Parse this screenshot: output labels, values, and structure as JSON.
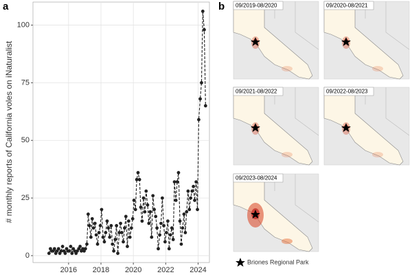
{
  "chart_data": [
    {
      "type": "line",
      "panel_label": "a",
      "ylabel": "# monthly reports of California voles on iNaturalist",
      "xlim": [
        2013.8,
        2024.7
      ],
      "xticks": [
        2016,
        2018,
        2020,
        2022,
        2024
      ],
      "ylim": [
        -3,
        110
      ],
      "yticks": [
        0,
        25,
        50,
        75,
        100
      ],
      "grid": true,
      "color": "#222222",
      "x": [
        2014.79,
        2014.88,
        2014.96,
        2015.04,
        2015.13,
        2015.21,
        2015.29,
        2015.38,
        2015.46,
        2015.54,
        2015.63,
        2015.71,
        2015.79,
        2015.88,
        2015.96,
        2016.04,
        2016.13,
        2016.21,
        2016.29,
        2016.38,
        2016.46,
        2016.54,
        2016.63,
        2016.71,
        2016.79,
        2016.88,
        2016.96,
        2017.04,
        2017.13,
        2017.21,
        2017.29,
        2017.38,
        2017.46,
        2017.54,
        2017.63,
        2017.71,
        2017.79,
        2017.88,
        2017.96,
        2018.04,
        2018.13,
        2018.21,
        2018.29,
        2018.38,
        2018.46,
        2018.54,
        2018.63,
        2018.71,
        2018.79,
        2018.88,
        2018.96,
        2019.04,
        2019.13,
        2019.21,
        2019.29,
        2019.38,
        2019.46,
        2019.54,
        2019.63,
        2019.71,
        2019.79,
        2019.88,
        2019.96,
        2020.04,
        2020.13,
        2020.21,
        2020.29,
        2020.38,
        2020.46,
        2020.54,
        2020.63,
        2020.71,
        2020.79,
        2020.88,
        2020.96,
        2021.04,
        2021.13,
        2021.21,
        2021.29,
        2021.38,
        2021.46,
        2021.54,
        2021.63,
        2021.71,
        2021.79,
        2021.88,
        2021.96,
        2022.04,
        2022.13,
        2022.21,
        2022.29,
        2022.38,
        2022.46,
        2022.54,
        2022.63,
        2022.71,
        2022.79,
        2022.88,
        2022.96,
        2023.04,
        2023.13,
        2023.21,
        2023.29,
        2023.38,
        2023.46,
        2023.54,
        2023.63,
        2023.71,
        2023.79,
        2023.88,
        2023.96,
        2024.04,
        2024.13,
        2024.21,
        2024.29,
        2024.38,
        2024.46
      ],
      "values": [
        1,
        3,
        2,
        2,
        3,
        1,
        2,
        3,
        1,
        2,
        4,
        2,
        1,
        3,
        2,
        2,
        4,
        1,
        3,
        2,
        1,
        2,
        3,
        4,
        2,
        3,
        2,
        3,
        5,
        18,
        13,
        8,
        16,
        12,
        14,
        9,
        5,
        10,
        13,
        20,
        8,
        6,
        10,
        15,
        12,
        8,
        13,
        5,
        2,
        7,
        13,
        1,
        10,
        14,
        10,
        6,
        12,
        17,
        4,
        15,
        8,
        12,
        16,
        24,
        20,
        33,
        36,
        33,
        21,
        15,
        25,
        19,
        28,
        22,
        14,
        19,
        8,
        26,
        20,
        17,
        12,
        3,
        9,
        14,
        25,
        13,
        6,
        10,
        15,
        3,
        9,
        12,
        7,
        32,
        24,
        32,
        36,
        15,
        5,
        12,
        18,
        10,
        19,
        28,
        20,
        25,
        28,
        30,
        24,
        32,
        20,
        59,
        68,
        75,
        106,
        98,
        65
      ]
    },
    {
      "type": "map",
      "panel_label": "b",
      "panels": [
        "09/2019-08/2020",
        "09/2020-08/2021",
        "09/2021-08/2022",
        "09/2022-08/2023",
        "09/2023-08/2024"
      ],
      "legend": "Briones Regional Park"
    }
  ]
}
